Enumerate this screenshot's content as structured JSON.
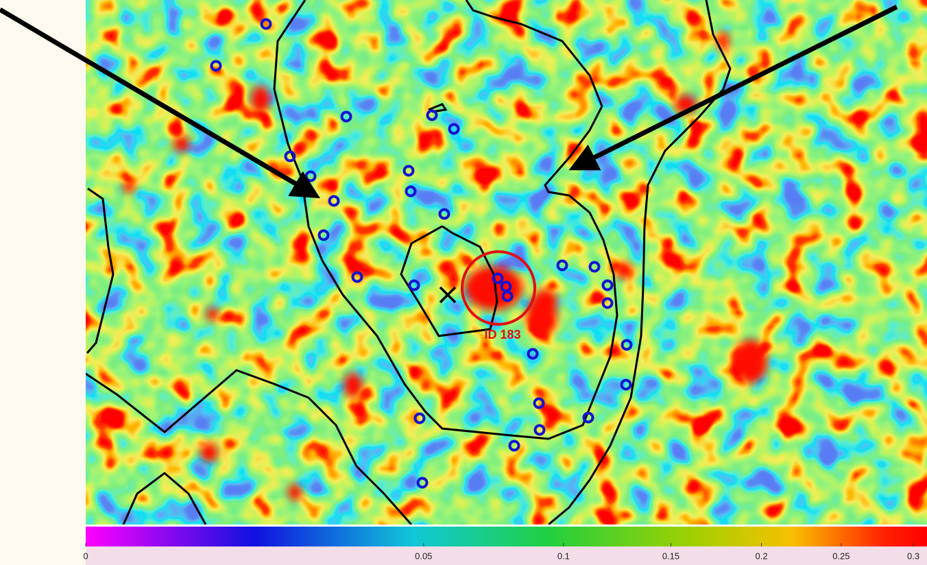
{
  "image": {
    "label": "ID 183"
  },
  "colorbar": {
    "scale": "sqrt",
    "lim": [
      0,
      0.31
    ],
    "ticks": [
      0,
      0.05,
      0.1,
      0.15,
      0.2,
      0.25,
      0.3
    ]
  }
}
